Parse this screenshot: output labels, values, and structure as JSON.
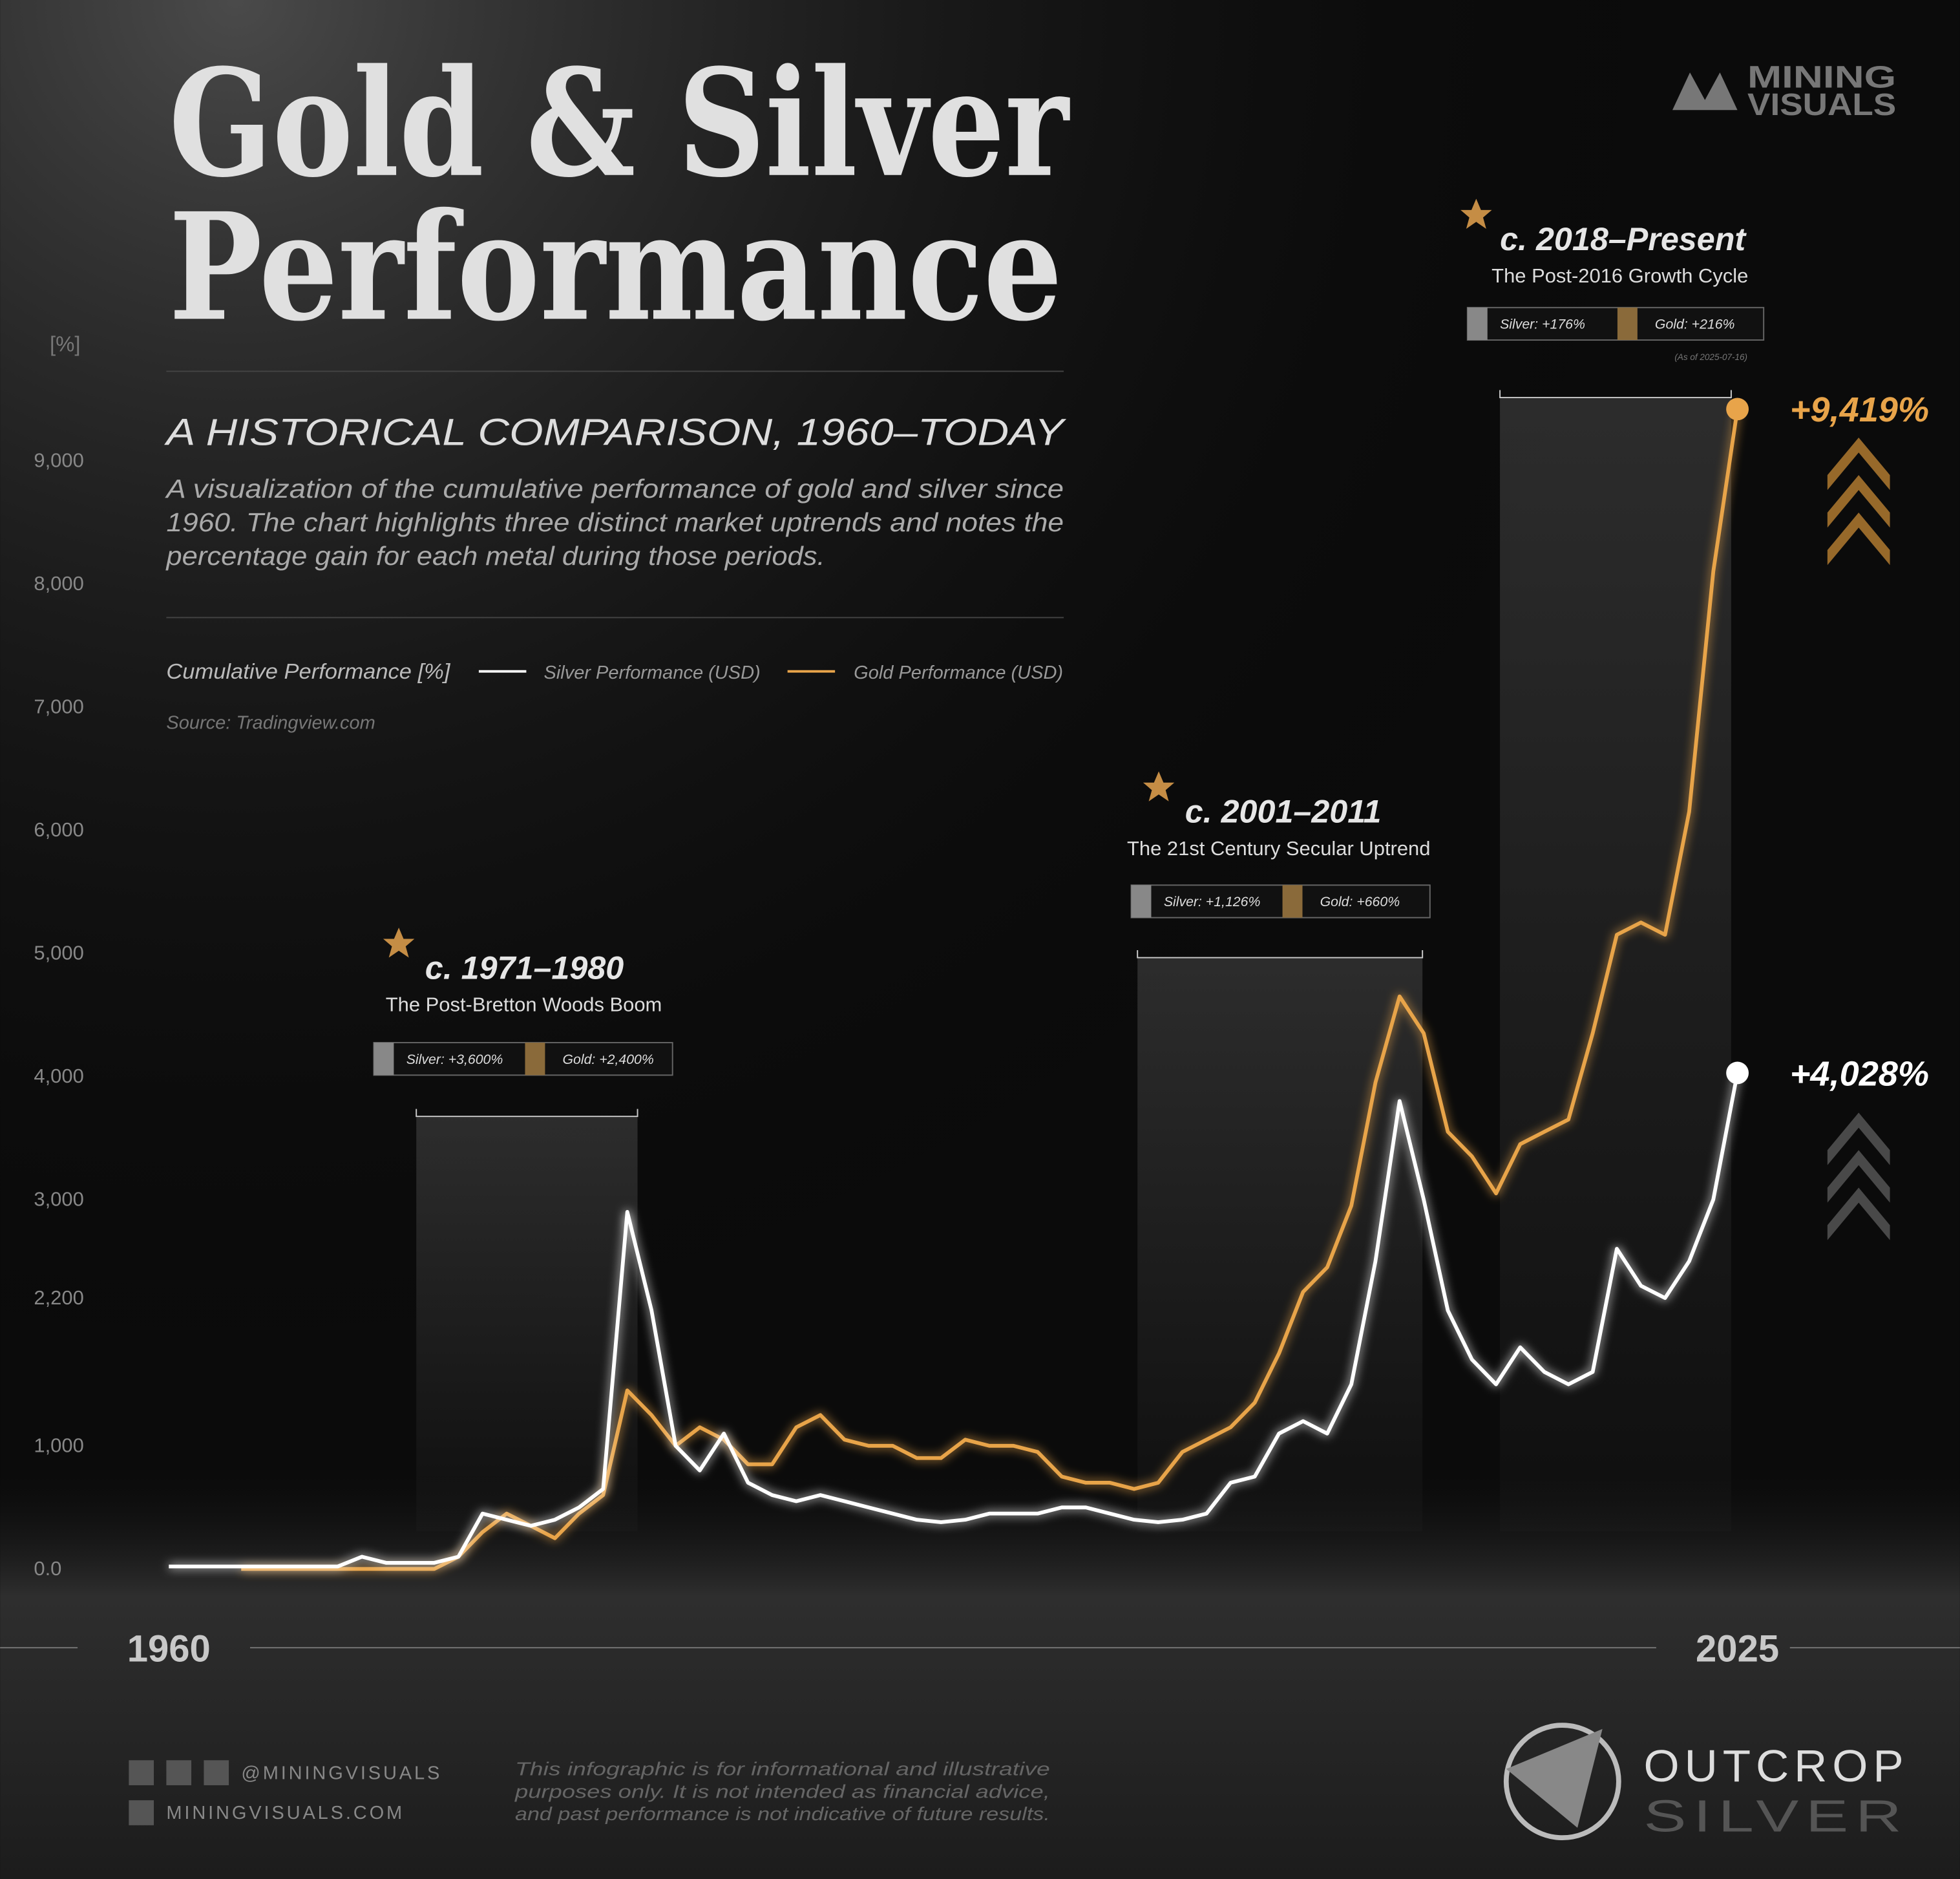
{
  "header": {
    "title_lines": [
      "Gold & Silver",
      "Performance"
    ],
    "subtitle": "A HISTORICAL COMPARISON, 1960–TODAY",
    "description_lines": [
      "A visualization of the cumulative performance of gold and silver since",
      "1960. The chart highlights three distinct market uptrends and notes the",
      "percentage gain for each metal during those periods."
    ],
    "legend_title": "Cumulative Performance [%]",
    "source": "Source: Tradingview.com"
  },
  "logo": {
    "line1": "MINING",
    "line2": "VISUALS"
  },
  "chart_data": {
    "type": "line",
    "y_label": "[%]",
    "x": [
      1960,
      1961,
      1962,
      1963,
      1964,
      1965,
      1966,
      1967,
      1968,
      1969,
      1970,
      1971,
      1972,
      1973,
      1974,
      1975,
      1976,
      1977,
      1978,
      1979,
      1980,
      1981,
      1982,
      1983,
      1984,
      1985,
      1986,
      1987,
      1988,
      1989,
      1990,
      1991,
      1992,
      1993,
      1994,
      1995,
      1996,
      1997,
      1998,
      1999,
      2000,
      2001,
      2002,
      2003,
      2004,
      2005,
      2006,
      2007,
      2008,
      2009,
      2010,
      2011,
      2012,
      2013,
      2014,
      2015,
      2016,
      2017,
      2018,
      2019,
      2020,
      2021,
      2022,
      2023,
      2024,
      2025
    ],
    "series": [
      {
        "name": "Gold Performance (USD)",
        "color": "#e8a44a",
        "values": [
          null,
          null,
          null,
          0,
          0,
          0,
          0,
          0,
          0,
          0,
          0,
          0,
          100,
          300,
          450,
          350,
          250,
          450,
          600,
          1450,
          1250,
          1000,
          1150,
          1050,
          850,
          850,
          1150,
          1250,
          1050,
          1000,
          1000,
          900,
          900,
          1050,
          1000,
          1000,
          950,
          750,
          700,
          700,
          650,
          700,
          950,
          1050,
          1150,
          1350,
          1750,
          2250,
          2450,
          2950,
          3950,
          4650,
          4350,
          3550,
          3350,
          3050,
          3450,
          3550,
          3650,
          4350,
          5150,
          5250,
          5150,
          6150,
          8100,
          9419
        ],
        "value_labels": [
          null,
          null,
          null,
          null,
          null,
          null,
          null,
          null,
          null,
          null,
          null,
          null,
          null,
          null,
          null,
          null,
          null,
          null,
          null,
          null,
          null,
          null,
          null,
          null,
          null,
          null,
          null,
          null,
          null,
          null,
          null,
          null,
          null,
          null,
          null,
          null,
          null,
          null,
          null,
          null,
          null,
          null,
          null,
          null,
          null,
          null,
          null,
          null,
          null,
          null,
          null,
          null,
          null,
          null,
          null,
          null,
          null,
          null,
          null,
          null,
          null,
          null,
          null,
          null,
          null,
          "+9,419%"
        ]
      },
      {
        "name": "Silver Performance (USD)",
        "color": "#ffffff",
        "values": [
          20,
          20,
          20,
          20,
          20,
          20,
          20,
          20,
          100,
          50,
          50,
          50,
          100,
          450,
          400,
          350,
          400,
          500,
          650,
          2900,
          2100,
          1000,
          800,
          1100,
          700,
          600,
          550,
          600,
          550,
          500,
          450,
          400,
          380,
          400,
          450,
          450,
          450,
          500,
          500,
          450,
          400,
          380,
          400,
          450,
          700,
          750,
          1100,
          1200,
          1100,
          1500,
          2500,
          3800,
          3000,
          2100,
          1700,
          1500,
          1800,
          1600,
          1500,
          1600,
          2600,
          2300,
          2200,
          2500,
          3000,
          4028
        ],
        "value_labels": [
          null,
          null,
          null,
          null,
          null,
          null,
          null,
          null,
          null,
          null,
          null,
          null,
          null,
          null,
          null,
          null,
          null,
          null,
          null,
          null,
          null,
          null,
          null,
          null,
          null,
          null,
          null,
          null,
          null,
          null,
          null,
          null,
          null,
          null,
          null,
          null,
          null,
          null,
          null,
          null,
          null,
          null,
          null,
          null,
          null,
          null,
          null,
          null,
          null,
          null,
          null,
          null,
          null,
          null,
          null,
          null,
          null,
          null,
          null,
          null,
          null,
          null,
          null,
          null,
          null,
          "+4,028%"
        ]
      }
    ],
    "xlim": [
      1960,
      2025
    ],
    "xticks": [
      1960,
      2025
    ],
    "ylim": [
      0,
      10000
    ],
    "yticks": [
      {
        "value": 0,
        "label": "0.0"
      },
      {
        "value": 1000,
        "label": "1,000"
      },
      {
        "value": 2200,
        "label": "2,200"
      },
      {
        "value": 3000,
        "label": "3,000"
      },
      {
        "value": 4000,
        "label": "4,000"
      },
      {
        "value": 5000,
        "label": "5,000"
      },
      {
        "value": 6000,
        "label": "6,000"
      },
      {
        "value": 7000,
        "label": "7,000"
      },
      {
        "value": 8000,
        "label": "8,000"
      },
      {
        "value": 9000,
        "label": "9,000"
      }
    ],
    "grid": false,
    "annotations": [
      {
        "period": "c. 1971–1980",
        "caption": "The Post-Bretton Woods Boom",
        "silver": "Silver: +3,600%",
        "gold": "Gold: +2,400%"
      },
      {
        "period": "c. 2001–2011",
        "caption": "The 21st Century Secular Uptrend",
        "silver": "Silver: +1,126%",
        "gold": "Gold: +660%"
      },
      {
        "period": "c. 2018–Present",
        "caption": "The Post-2016 Growth Cycle",
        "silver": "Silver: +176%",
        "gold": "Gold: +216%",
        "note": "(As of 2025-07-16)"
      }
    ]
  },
  "footer": {
    "social": "@MININGVISUALS",
    "website": "MININGVISUALS.COM",
    "disclaimer_lines": [
      "This infographic is for informational and illustrative",
      "purposes only. It is not intended as financial advice,",
      "and past performance is not indicative of future results."
    ],
    "brand_line1": "OUTCROP",
    "brand_line2": "SILVER"
  }
}
